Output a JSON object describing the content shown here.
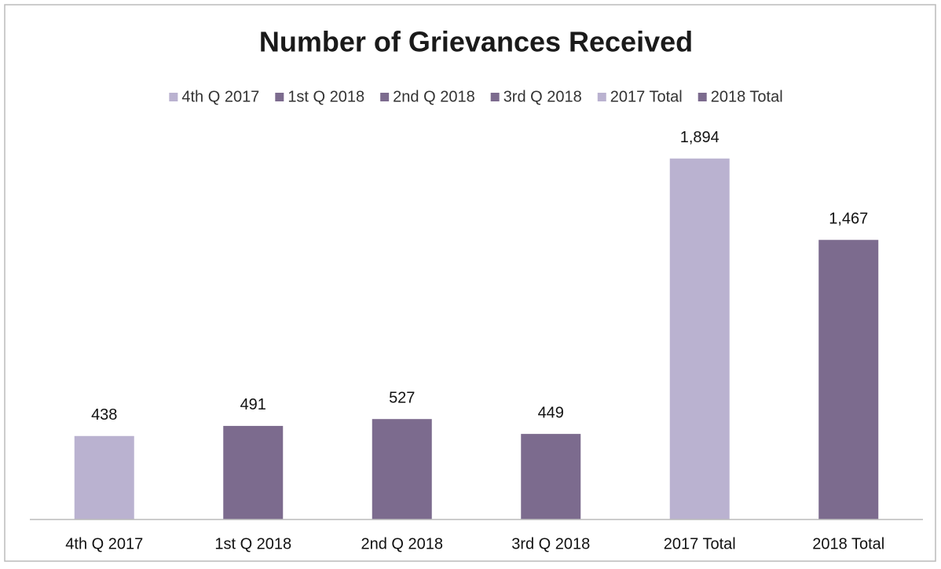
{
  "chart_data": {
    "type": "bar",
    "title": "Number of Grievances Received",
    "categories": [
      "4th Q 2017",
      "1st Q 2018",
      "2nd  Q 2018",
      "3rd Q 2018",
      "2017 Total",
      "2018 Total"
    ],
    "values": [
      438,
      491,
      527,
      449,
      1894,
      1467
    ],
    "value_labels": [
      "438",
      "491",
      "527",
      "449",
      "1,894",
      "1,467"
    ],
    "colors": [
      "#bab2d0",
      "#7c6b8e",
      "#7c6b8e",
      "#7c6b8e",
      "#bab2d0",
      "#7c6b8e"
    ],
    "ylim": [
      0,
      2000
    ],
    "legend": "top"
  }
}
